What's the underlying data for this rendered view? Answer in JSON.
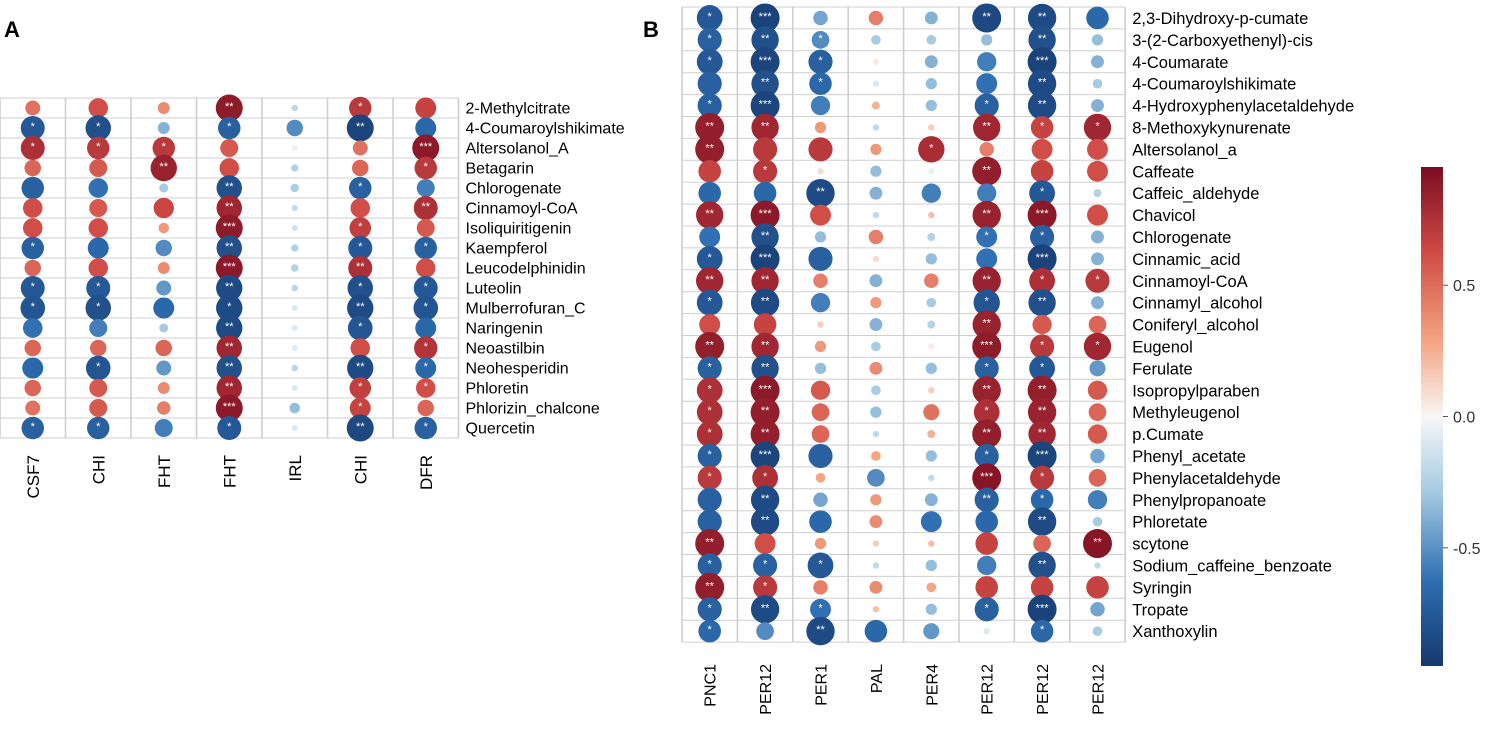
{
  "panel_a_label": "A",
  "panel_b_label": "B",
  "colorbar": {
    "tick_labels": [
      "0.5",
      "0.0",
      "-0.5"
    ],
    "tick_values": [
      0.5,
      0.0,
      -0.5
    ],
    "range": [
      -0.95,
      0.95
    ]
  },
  "colors": {
    "strong_negative": "#16386d",
    "negative": "#2e6eb2",
    "weak_negative": "#a6cbe3",
    "neutral": "#f7f7f7",
    "weak_positive": "#f4a582",
    "positive": "#d04a45",
    "strong_positive": "#7a0c22",
    "grid": "#cfcfcf",
    "text": "#000000",
    "star": "#ffffff"
  },
  "chart_data": [
    {
      "type": "heatmap",
      "panel": "A",
      "columns": [
        "CSF7",
        "CHI",
        "FHT",
        "FHT",
        "IRL",
        "CHI",
        "DFR"
      ],
      "rows": [
        "2-Methylcitrate",
        "4-Coumaroylshikimate",
        "Altersolanol_A",
        "Betagarin",
        "Chlorogenate",
        "Cinnamoyl-CoA",
        "Isoliquiritigenin",
        "Kaempferol",
        "Leucodelphinidin",
        "Luteolin",
        "Mulberrofuran_C",
        "Naringenin",
        "Neoastilbin",
        "Neohesperidin",
        "Phloretin",
        "Phlorizin_chalcone",
        "Quercetin"
      ],
      "values": [
        [
          0.5,
          0.65,
          0.4,
          0.92,
          -0.22,
          0.75,
          0.7
        ],
        [
          -0.8,
          -0.85,
          -0.4,
          -0.75,
          -0.55,
          -0.92,
          -0.7
        ],
        [
          0.8,
          0.75,
          0.75,
          0.6,
          -0.05,
          0.5,
          0.93
        ],
        [
          0.55,
          0.6,
          0.88,
          0.65,
          -0.25,
          0.55,
          0.75
        ],
        [
          -0.75,
          -0.65,
          -0.3,
          -0.85,
          -0.28,
          -0.75,
          -0.6
        ],
        [
          0.65,
          0.6,
          0.68,
          0.85,
          -0.2,
          0.65,
          0.8
        ],
        [
          0.65,
          0.65,
          0.35,
          0.92,
          -0.15,
          0.72,
          0.6
        ],
        [
          -0.75,
          -0.7,
          -0.55,
          -0.85,
          -0.25,
          -0.8,
          -0.75
        ],
        [
          0.55,
          0.65,
          0.4,
          0.93,
          -0.25,
          0.8,
          0.65
        ],
        [
          -0.8,
          -0.8,
          -0.5,
          -0.88,
          -0.22,
          -0.85,
          -0.8
        ],
        [
          -0.82,
          -0.85,
          -0.7,
          -0.88,
          -0.1,
          -0.88,
          -0.82
        ],
        [
          -0.65,
          -0.6,
          -0.3,
          -0.88,
          -0.1,
          -0.82,
          -0.7
        ],
        [
          0.55,
          0.55,
          0.55,
          0.85,
          -0.08,
          0.65,
          0.78
        ],
        [
          -0.7,
          -0.82,
          -0.5,
          -0.85,
          -0.22,
          -0.88,
          -0.7
        ],
        [
          0.55,
          0.6,
          0.4,
          0.85,
          -0.1,
          0.72,
          0.65
        ],
        [
          0.5,
          0.6,
          0.45,
          0.93,
          -0.35,
          0.7,
          0.55
        ],
        [
          -0.75,
          -0.75,
          -0.6,
          -0.8,
          -0.1,
          -0.9,
          -0.75
        ]
      ],
      "stars": [
        [
          "",
          "",
          "",
          "**",
          "",
          "*",
          ""
        ],
        [
          "*",
          "*",
          "",
          "*",
          "",
          "**",
          ""
        ],
        [
          "*",
          "*",
          "*",
          "",
          "",
          "",
          "***"
        ],
        [
          "",
          "",
          "**",
          "",
          "",
          "",
          "*"
        ],
        [
          "",
          "",
          "",
          "**",
          "",
          "*",
          ""
        ],
        [
          "",
          "",
          "",
          "**",
          "",
          "",
          "**"
        ],
        [
          "",
          "",
          "",
          "***",
          "",
          "*",
          ""
        ],
        [
          "*",
          "",
          "",
          "**",
          "",
          "*",
          "*"
        ],
        [
          "",
          "",
          "",
          "***",
          "",
          "**",
          ""
        ],
        [
          "*",
          "*",
          "",
          "**",
          "",
          "*",
          "*"
        ],
        [
          "*",
          "*",
          "",
          "*",
          "",
          "**",
          "*"
        ],
        [
          "",
          "",
          "",
          "**",
          "",
          "*",
          ""
        ],
        [
          "",
          "",
          "",
          "**",
          "",
          "",
          "*"
        ],
        [
          "",
          "*",
          "",
          "**",
          "",
          "**",
          "*"
        ],
        [
          "",
          "",
          "",
          "**",
          "",
          "*",
          "*"
        ],
        [
          "",
          "",
          "",
          "***",
          "",
          "*",
          ""
        ],
        [
          "*",
          "*",
          "",
          "*",
          "",
          "**",
          "*"
        ]
      ]
    },
    {
      "type": "heatmap",
      "panel": "B",
      "columns": [
        "PNC1",
        "PER12",
        "PER1",
        "PAL",
        "PER4",
        "PER12",
        "PER12",
        "PER12"
      ],
      "rows": [
        "2,3-Dihydroxy-p-cumate",
        "3-(2-Carboxyethenyl)-cis",
        "4-Coumarate",
        "4-Coumaroylshikimate",
        "4-Hydroxyphenylacetaldehyde",
        "8-Methoxykynurenate",
        "Altersolanol_a",
        "Caffeate",
        "Caffeic_aldehyde",
        "Chavicol",
        "Chlorogenate",
        "Cinnamic_acid",
        "Cinnamoyl-CoA",
        "Cinnamyl_alcohol",
        "Coniferyl_alcohol",
        "Eugenol",
        "Ferulate",
        "Isopropylparaben",
        "Methyleugenol",
        "p.Cumate",
        "Phenyl_acetate",
        "Phenylacetaldehyde",
        "Phenylpropanoate",
        "Phloretate",
        "scytone",
        "Sodium_caffeine_benzoate",
        "Syringin",
        "Tropate",
        "Xanthoxylin"
      ],
      "values": [
        [
          -0.8,
          -0.93,
          -0.45,
          0.45,
          -0.4,
          -0.9,
          -0.88,
          -0.7
        ],
        [
          -0.75,
          -0.85,
          -0.55,
          -0.3,
          -0.3,
          -0.35,
          -0.85,
          -0.35
        ],
        [
          -0.8,
          -0.92,
          -0.75,
          0.05,
          -0.4,
          -0.6,
          -0.93,
          -0.4
        ],
        [
          -0.75,
          -0.85,
          -0.7,
          -0.1,
          -0.35,
          -0.65,
          -0.88,
          -0.3
        ],
        [
          -0.75,
          -0.92,
          -0.6,
          0.25,
          -0.35,
          -0.75,
          -0.88,
          -0.4
        ],
        [
          0.9,
          0.85,
          0.35,
          -0.2,
          0.15,
          0.85,
          0.7,
          0.85
        ],
        [
          0.9,
          0.75,
          0.75,
          0.35,
          0.82,
          0.45,
          0.65,
          0.65
        ],
        [
          0.7,
          0.75,
          0.1,
          -0.35,
          -0.05,
          0.9,
          0.7,
          0.65
        ],
        [
          -0.7,
          -0.7,
          -0.88,
          -0.4,
          -0.6,
          -0.6,
          -0.8,
          -0.25
        ],
        [
          0.85,
          0.93,
          0.65,
          -0.2,
          0.2,
          0.88,
          0.93,
          0.65
        ],
        [
          -0.65,
          -0.85,
          -0.35,
          0.45,
          -0.25,
          -0.65,
          -0.75,
          -0.4
        ],
        [
          -0.8,
          -0.93,
          -0.75,
          0.1,
          -0.35,
          -0.65,
          -0.93,
          -0.4
        ],
        [
          0.85,
          0.85,
          0.45,
          -0.4,
          0.45,
          0.88,
          0.8,
          0.75
        ],
        [
          -0.8,
          -0.88,
          -0.6,
          0.35,
          -0.3,
          -0.82,
          -0.85,
          -0.4
        ],
        [
          0.65,
          0.7,
          0.15,
          -0.4,
          -0.25,
          0.88,
          0.6,
          0.55
        ],
        [
          0.9,
          0.85,
          0.35,
          -0.3,
          0.05,
          0.92,
          0.75,
          0.85
        ],
        [
          -0.75,
          -0.85,
          -0.35,
          0.4,
          -0.35,
          -0.75,
          -0.8,
          -0.5
        ],
        [
          0.8,
          0.93,
          0.6,
          -0.3,
          0.15,
          0.88,
          0.9,
          0.6
        ],
        [
          0.8,
          0.9,
          0.55,
          -0.35,
          0.5,
          0.8,
          0.88,
          0.55
        ],
        [
          0.8,
          0.9,
          0.55,
          -0.2,
          0.25,
          0.9,
          0.85,
          0.6
        ],
        [
          -0.75,
          -0.92,
          -0.75,
          0.3,
          -0.35,
          -0.75,
          -0.92,
          -0.45
        ],
        [
          0.75,
          0.8,
          0.3,
          -0.55,
          -0.2,
          0.95,
          0.75,
          0.55
        ],
        [
          -0.75,
          -0.88,
          -0.45,
          0.35,
          -0.4,
          -0.75,
          -0.7,
          -0.6
        ],
        [
          -0.75,
          -0.88,
          -0.7,
          0.4,
          -0.65,
          -0.7,
          -0.88,
          -0.3
        ],
        [
          0.9,
          0.65,
          0.35,
          0.15,
          0.2,
          0.7,
          0.55,
          0.95
        ],
        [
          -0.75,
          -0.75,
          -0.8,
          -0.2,
          -0.35,
          -0.6,
          -0.85,
          -0.2
        ],
        [
          0.9,
          0.75,
          0.45,
          0.4,
          0.3,
          0.7,
          0.7,
          0.7
        ],
        [
          -0.75,
          -0.88,
          -0.65,
          0.2,
          -0.35,
          -0.75,
          -0.93,
          -0.45
        ],
        [
          -0.7,
          -0.55,
          -0.88,
          -0.7,
          -0.5,
          -0.1,
          -0.7,
          -0.3
        ]
      ],
      "stars": [
        [
          "*",
          "***",
          "",
          "",
          "",
          "**",
          "**",
          ""
        ],
        [
          "*",
          "**",
          "*",
          "",
          "",
          "",
          "**",
          ""
        ],
        [
          "*",
          "***",
          "*",
          "",
          "",
          "",
          "***",
          ""
        ],
        [
          "",
          "**",
          "*",
          "",
          "",
          "",
          "**",
          ""
        ],
        [
          "*",
          "***",
          "",
          "",
          "",
          "*",
          "**",
          ""
        ],
        [
          "**",
          "**",
          "",
          "",
          "",
          "**",
          "*",
          "*"
        ],
        [
          "**",
          "",
          "",
          "",
          "*",
          "",
          "",
          ""
        ],
        [
          "",
          "*",
          "",
          "",
          "",
          "**",
          "",
          ""
        ],
        [
          "",
          "",
          "**",
          "",
          "",
          "",
          "*",
          ""
        ],
        [
          "**",
          "***",
          "",
          "",
          "",
          "**",
          "***",
          ""
        ],
        [
          "",
          "**",
          "",
          "",
          "",
          "*",
          "*",
          ""
        ],
        [
          "*",
          "***",
          "",
          "",
          "",
          "",
          "***",
          ""
        ],
        [
          "**",
          "**",
          "",
          "",
          "",
          "**",
          "*",
          "*"
        ],
        [
          "*",
          "**",
          "",
          "",
          "",
          "*",
          "**",
          ""
        ],
        [
          "",
          "",
          "",
          "",
          "",
          "**",
          "",
          ""
        ],
        [
          "**",
          "**",
          "",
          "",
          "",
          "***",
          "*",
          "*"
        ],
        [
          "*",
          "**",
          "",
          "",
          "",
          "*",
          "*",
          ""
        ],
        [
          "*",
          "***",
          "",
          "",
          "",
          "**",
          "**",
          ""
        ],
        [
          "*",
          "**",
          "",
          "",
          "",
          "*",
          "**",
          ""
        ],
        [
          "*",
          "**",
          "",
          "",
          "",
          "**",
          "**",
          ""
        ],
        [
          "*",
          "***",
          "",
          "",
          "",
          "*",
          "***",
          ""
        ],
        [
          "*",
          "*",
          "",
          "",
          "",
          "***",
          "*",
          ""
        ],
        [
          "",
          "**",
          "",
          "",
          "",
          "**",
          "*",
          ""
        ],
        [
          "",
          "**",
          "",
          "",
          "",
          "",
          "**",
          ""
        ],
        [
          "**",
          "",
          "",
          "",
          "",
          "",
          "",
          "**"
        ],
        [
          "*",
          "*",
          "*",
          "",
          "",
          "",
          "**",
          ""
        ],
        [
          "**",
          "*",
          "",
          "",
          "",
          "",
          "",
          ""
        ],
        [
          "*",
          "**",
          "*",
          "",
          "",
          "*",
          "***",
          ""
        ],
        [
          "*",
          "",
          "**",
          "",
          "",
          "",
          "*",
          ""
        ]
      ]
    }
  ]
}
